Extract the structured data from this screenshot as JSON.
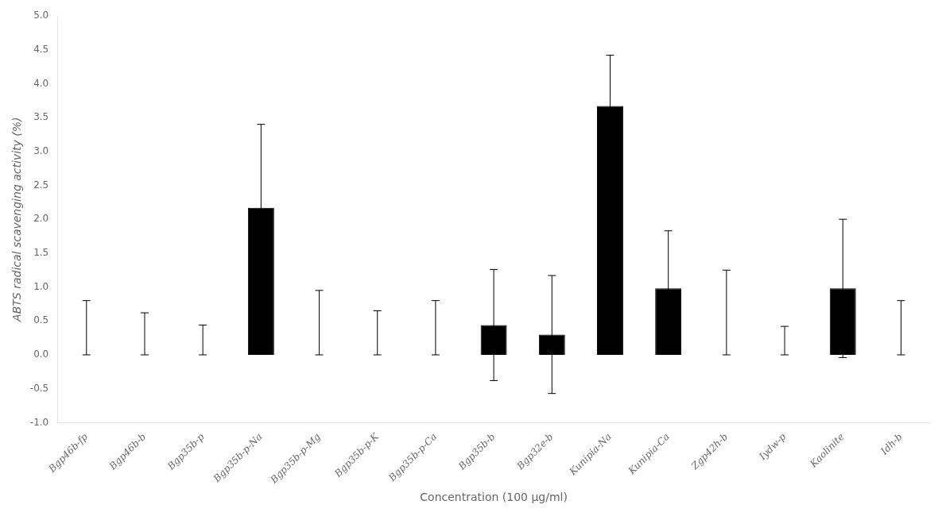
{
  "chart_data": {
    "type": "bar",
    "categories": [
      "Bgp46b-fp",
      "Bgp46b-b",
      "Bgp35b-p",
      "Bgp35b-p-Na",
      "Bgp35b-p-Mg",
      "Bgp35b-p-K",
      "Bgp35b-p-Ca",
      "Bgp35b-b",
      "Bgp32e-b",
      "Kunipia-Na",
      "Kunipia-Ca",
      "Zgp42h-b",
      "Iydw-p",
      "Kaolinite",
      "Idh-b"
    ],
    "values": [
      0.0,
      0.0,
      0.0,
      2.17,
      0.0,
      0.0,
      0.0,
      0.44,
      0.3,
      3.67,
      0.98,
      0.0,
      0.0,
      0.98,
      0.0
    ],
    "error_lower": [
      0.0,
      0.0,
      0.0,
      1.23,
      0.0,
      0.0,
      0.0,
      0.82,
      0.87,
      0.75,
      0.85,
      0.0,
      0.0,
      1.02,
      0.0
    ],
    "error_upper": [
      0.8,
      0.62,
      0.44,
      1.23,
      0.95,
      0.65,
      0.8,
      0.82,
      0.87,
      0.75,
      0.85,
      1.25,
      0.42,
      1.02,
      0.8
    ],
    "color": "#000000",
    "xlabel": "Concentration (100 μg/ml)",
    "ylabel": "ABTS radical scavenging activity (%)",
    "ylim": [
      -1.0,
      5.0
    ],
    "yticks": [
      {
        "value": -1.0,
        "label": "-1.0"
      },
      -0.5,
      {
        "value": 0.0,
        "label": "0.0"
      },
      0.5,
      {
        "value": 1.0,
        "label": "1.0"
      },
      1.5,
      {
        "value": 2.0,
        "label": "2.0"
      },
      2.5,
      {
        "value": 3.0,
        "label": "3.0"
      },
      3.5,
      {
        "value": 4.0,
        "label": "4.0"
      },
      4.5,
      {
        "value": 5.0,
        "label": "5.0"
      }
    ],
    "grid": false
  }
}
